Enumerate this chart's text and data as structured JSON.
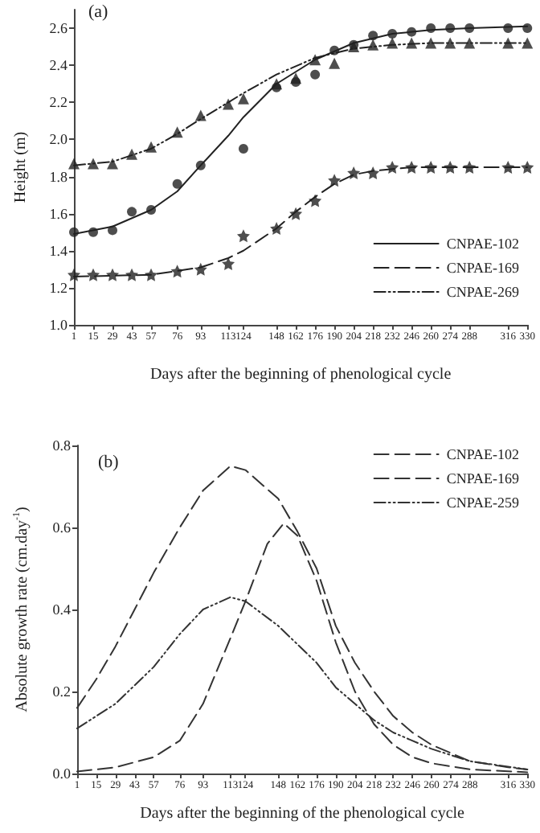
{
  "chart_data": [
    {
      "type": "line",
      "title": "(a)",
      "xlabel": "Days after the beginning of phenological cycle",
      "ylabel": "Height (m)",
      "xlim": [
        1,
        330
      ],
      "xticks": [
        1,
        15,
        29,
        43,
        57,
        76,
        93,
        113,
        124,
        148,
        162,
        176,
        190,
        204,
        218,
        232,
        246,
        260,
        274,
        288,
        316,
        330
      ],
      "ylim": [
        1.0,
        2.7
      ],
      "yticks": [
        {
          "value": 1.0,
          "label": "1.0"
        },
        1.2,
        1.4,
        1.6,
        1.8,
        {
          "value": 2.0,
          "label": "2.0"
        },
        2.2,
        2.4,
        2.6
      ],
      "grid": false,
      "legend": "bottom right",
      "series": [
        {
          "name": "CNPAE-102",
          "type": "line",
          "color": "#222222",
          "line_style": "solid",
          "marker": "none",
          "x": [
            1,
            29,
            57,
            76,
            93,
            113,
            124,
            148,
            176,
            204,
            232,
            260,
            288,
            330
          ],
          "values": [
            1.49,
            1.53,
            1.62,
            1.72,
            1.86,
            2.02,
            2.12,
            2.3,
            2.43,
            2.52,
            2.57,
            2.59,
            2.6,
            2.61
          ]
        },
        {
          "type": "scatter",
          "color": "#222222",
          "marker": "circle",
          "x": [
            1,
            15,
            29,
            43,
            57,
            76,
            93,
            124,
            148,
            162,
            176,
            190,
            204,
            218,
            232,
            246,
            260,
            274,
            288,
            316,
            330
          ],
          "values": [
            1.5,
            1.5,
            1.51,
            1.61,
            1.62,
            1.76,
            1.86,
            1.95,
            2.28,
            2.31,
            2.35,
            2.48,
            2.51,
            2.56,
            2.57,
            2.58,
            2.6,
            2.6,
            2.6,
            2.6,
            2.6
          ]
        },
        {
          "name": "CNPAE-169",
          "type": "line",
          "color": "#222222",
          "line_style": "dashed",
          "marker": "none",
          "x": [
            1,
            57,
            93,
            113,
            124,
            148,
            162,
            176,
            190,
            204,
            218,
            246,
            330
          ],
          "values": [
            1.26,
            1.27,
            1.31,
            1.36,
            1.4,
            1.52,
            1.61,
            1.69,
            1.76,
            1.81,
            1.83,
            1.85,
            1.85
          ]
        },
        {
          "type": "scatter",
          "color": "#222222",
          "marker": "star",
          "x": [
            1,
            15,
            29,
            43,
            57,
            76,
            93,
            113,
            124,
            148,
            162,
            176,
            190,
            204,
            218,
            232,
            246,
            260,
            274,
            288,
            316,
            330
          ],
          "values": [
            1.27,
            1.27,
            1.27,
            1.27,
            1.27,
            1.29,
            1.3,
            1.33,
            1.48,
            1.52,
            1.6,
            1.67,
            1.78,
            1.82,
            1.82,
            1.85,
            1.85,
            1.85,
            1.85,
            1.85,
            1.85,
            1.85
          ]
        },
        {
          "name": "CNPAE-269",
          "type": "line",
          "color": "#222222",
          "line_style": "dashdotdot",
          "marker": "none",
          "x": [
            1,
            29,
            57,
            76,
            93,
            113,
            124,
            148,
            176,
            204,
            232,
            260,
            330
          ],
          "values": [
            1.86,
            1.88,
            1.95,
            2.03,
            2.11,
            2.2,
            2.25,
            2.35,
            2.44,
            2.49,
            2.51,
            2.52,
            2.52
          ]
        },
        {
          "type": "scatter",
          "color": "#222222",
          "marker": "triangle",
          "x": [
            1,
            15,
            29,
            43,
            57,
            76,
            93,
            113,
            124,
            148,
            162,
            176,
            190,
            204,
            218,
            232,
            246,
            260,
            274,
            288,
            316,
            330
          ],
          "values": [
            1.87,
            1.87,
            1.87,
            1.92,
            1.96,
            2.04,
            2.13,
            2.19,
            2.22,
            2.3,
            2.33,
            2.43,
            2.41,
            2.5,
            2.51,
            2.52,
            2.52,
            2.52,
            2.52,
            2.52,
            2.52,
            2.52
          ]
        }
      ]
    },
    {
      "type": "line",
      "title": "(b)",
      "xlabel": "Days after the beginning of the phenological cycle",
      "ylabel": "Absolute growth rate (cm.day$^{-1}$)",
      "xlim": [
        1,
        330
      ],
      "xticks": [
        1,
        15,
        29,
        43,
        57,
        76,
        93,
        113,
        124,
        148,
        162,
        176,
        190,
        204,
        218,
        232,
        246,
        260,
        274,
        288,
        316,
        330
      ],
      "ylim": [
        0,
        0.8
      ],
      "yticks": [
        {
          "value": 0,
          "label": "0.0"
        },
        0.2,
        0.4,
        0.6,
        0.8
      ],
      "grid": false,
      "legend": "top right",
      "series": [
        {
          "name": "CNPAE-102",
          "color": "#333333",
          "line_style": "dashed",
          "marker": "none",
          "x": [
            1,
            15,
            29,
            43,
            57,
            76,
            93,
            113,
            124,
            148,
            162,
            176,
            190,
            204,
            218,
            232,
            246,
            260,
            274,
            288,
            316,
            330
          ],
          "values": [
            0.16,
            0.23,
            0.31,
            0.4,
            0.49,
            0.6,
            0.69,
            0.75,
            0.74,
            0.67,
            0.59,
            0.5,
            0.36,
            0.27,
            0.2,
            0.14,
            0.1,
            0.07,
            0.05,
            0.03,
            0.015,
            0.01
          ]
        },
        {
          "name": "CNPAE-169",
          "color": "#333333",
          "line_style": "dashed",
          "marker": "none",
          "x": [
            1,
            29,
            57,
            76,
            93,
            113,
            124,
            140,
            152,
            162,
            176,
            190,
            204,
            218,
            232,
            246,
            260,
            288,
            330
          ],
          "values": [
            0.005,
            0.015,
            0.04,
            0.08,
            0.17,
            0.33,
            0.42,
            0.56,
            0.61,
            0.58,
            0.47,
            0.32,
            0.2,
            0.12,
            0.07,
            0.04,
            0.025,
            0.01,
            0.003
          ]
        },
        {
          "name": "CNPAE-259",
          "color": "#333333",
          "line_style": "dashdotdot",
          "marker": "none",
          "x": [
            1,
            29,
            57,
            76,
            93,
            113,
            124,
            148,
            176,
            190,
            204,
            218,
            232,
            260,
            288,
            330
          ],
          "values": [
            0.11,
            0.17,
            0.26,
            0.34,
            0.4,
            0.43,
            0.42,
            0.36,
            0.27,
            0.21,
            0.17,
            0.13,
            0.1,
            0.06,
            0.03,
            0.01
          ]
        }
      ]
    }
  ]
}
